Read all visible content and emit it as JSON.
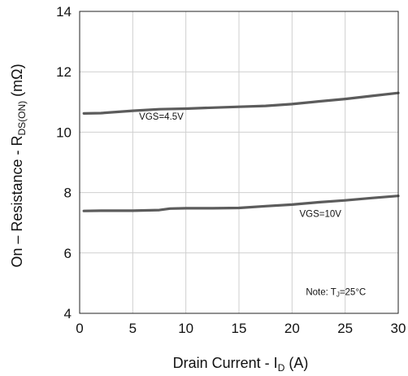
{
  "chart_data": {
    "type": "line",
    "xlabel": "Drain Current - I",
    "xlabel_sub": "D",
    "xlabel_unit": " (A)",
    "ylabel": "On – Resistance - R",
    "ylabel_sub": "DS(ON)",
    "ylabel_unit": " (mΩ)",
    "xlim": [
      0,
      30
    ],
    "ylim": [
      4,
      14
    ],
    "xticks": [
      0,
      5,
      10,
      15,
      20,
      25,
      30
    ],
    "yticks": [
      4,
      6,
      8,
      10,
      12,
      14
    ],
    "grid": true,
    "series_color": "#5c5c5c",
    "series": [
      {
        "name": "VGS=4.5V",
        "x": [
          0.4,
          2,
          5,
          7.5,
          10,
          12.5,
          15,
          17.5,
          20,
          22.5,
          25,
          27.5,
          30
        ],
        "y": [
          10.62,
          10.63,
          10.71,
          10.76,
          10.78,
          10.81,
          10.84,
          10.87,
          10.93,
          11.02,
          11.1,
          11.2,
          11.3
        ]
      },
      {
        "name": "VGS=10V",
        "x": [
          0.4,
          2,
          5,
          7.5,
          8.5,
          10,
          12.5,
          15,
          17.5,
          20,
          22.5,
          25,
          27.5,
          30
        ],
        "y": [
          7.39,
          7.4,
          7.4,
          7.42,
          7.47,
          7.48,
          7.48,
          7.49,
          7.55,
          7.6,
          7.68,
          7.74,
          7.82,
          7.89
        ]
      }
    ],
    "annotations": [
      {
        "text": "VGS=4.5V",
        "x": 5.6,
        "y": 10.42
      },
      {
        "text": "VGS=10V",
        "x": 20.7,
        "y": 7.2
      }
    ],
    "note": {
      "prefix": "Note: T",
      "sub": "J",
      "suffix": "=25°C",
      "x": 21.3,
      "y": 4.6
    }
  }
}
